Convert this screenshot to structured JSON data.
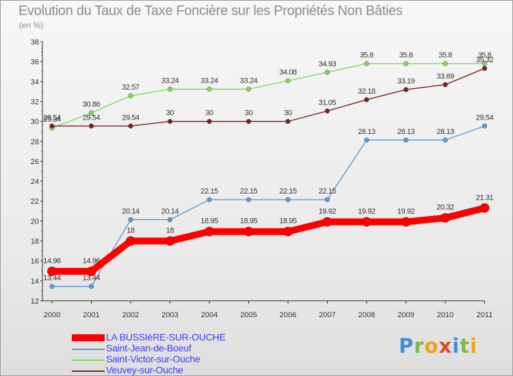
{
  "title": "Evolution du Taux de Taxe Foncière sur les Propriétés Non Bâties",
  "unit_label": "(en %)",
  "logo": {
    "text": "Proxiti",
    "letters": [
      {
        "ch": "P",
        "color": "#3d8fd8"
      },
      {
        "ch": "r",
        "color": "#7db84a"
      },
      {
        "ch": "o",
        "color": "#f2a019"
      },
      {
        "ch": "x",
        "color": "#d64a2f"
      },
      {
        "ch": "i",
        "color": "#3d8fd8"
      },
      {
        "ch": "t",
        "color": "#7db84a"
      },
      {
        "ch": "i",
        "color": "#f2a019"
      }
    ]
  },
  "chart_data": {
    "type": "line",
    "title": "Evolution du Taux de Taxe Foncière sur les Propriétés Non Bâties",
    "ylabel": "(en %)",
    "xlabel": "",
    "ylim": [
      12,
      38
    ],
    "yticks": [
      12,
      14,
      16,
      18,
      20,
      22,
      24,
      26,
      28,
      30,
      32,
      34,
      36,
      38
    ],
    "grid": false,
    "legend_position": "bottom-left",
    "categories": [
      "2000",
      "2001",
      "2002",
      "2003",
      "2004",
      "2005",
      "2006",
      "2007",
      "2008",
      "2009",
      "2010",
      "2011"
    ],
    "series": [
      {
        "name": "Saint-Victor-sur-Ouche",
        "color": "#7ed957",
        "values": [
          29.34,
          30.86,
          32.57,
          33.24,
          33.24,
          33.24,
          34.08,
          34.93,
          35.8,
          35.8,
          35.8,
          35.8
        ],
        "labels": [
          "29.34",
          "30.86",
          "32.57",
          "33.24",
          "33.24",
          "33.24",
          "34.08",
          "34.93",
          "35.8",
          "35.8",
          "35.8",
          "35.8"
        ]
      },
      {
        "name": "Veuvey-sur-Ouche",
        "color": "#7a2020",
        "values": [
          29.54,
          29.54,
          29.54,
          30,
          30,
          30,
          30,
          31.05,
          32.18,
          33.19,
          33.69,
          35.32
        ],
        "labels": [
          "29.54",
          "29.54",
          "29.54",
          "30",
          "30",
          "30",
          "30",
          "31.05",
          "32.18",
          "33.19",
          "33.69",
          "35.32"
        ]
      },
      {
        "name": "Saint-Jean-de-Boeuf",
        "color": "#5b9bd5",
        "values": [
          13.44,
          13.44,
          20.14,
          20.14,
          22.15,
          22.15,
          22.15,
          22.15,
          28.13,
          28.13,
          28.13,
          29.54
        ],
        "labels": [
          "13.44",
          "13.44",
          "20.14",
          "20.14",
          "22.15",
          "22.15",
          "22.15",
          "22.15",
          "28.13",
          "28.13",
          "28.13",
          "29.54"
        ]
      },
      {
        "name": "LA BUSSIèRE-SUR-OUCHE",
        "color": "#ff0000",
        "values": [
          14.96,
          14.96,
          18,
          18,
          18.95,
          18.95,
          18.95,
          19.92,
          19.92,
          19.92,
          20.32,
          21.31
        ],
        "labels": [
          "14.96",
          "14.96",
          "18",
          "18",
          "18.95",
          "18.95",
          "18.95",
          "19.92",
          "19.92",
          "19.92",
          "20.32",
          "21.31"
        ]
      }
    ],
    "legend": [
      {
        "name": "LA BUSSIèRE-SUR-OUCHE",
        "color": "#ff0000",
        "thick": true
      },
      {
        "name": "Saint-Jean-de-Boeuf",
        "color": "#5b9bd5",
        "thick": false
      },
      {
        "name": "Saint-Victor-sur-Ouche",
        "color": "#7ed957",
        "thick": false
      },
      {
        "name": "Veuvey-sur-Ouche",
        "color": "#7a2020",
        "thick": false
      }
    ]
  }
}
